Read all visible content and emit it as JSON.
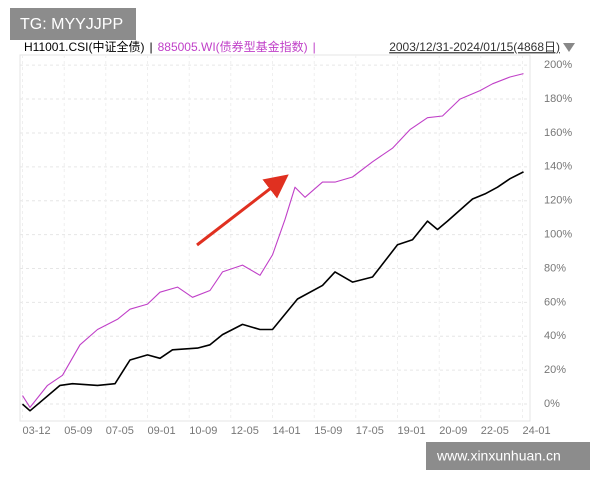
{
  "watermark_top": "TG: MYYJJPP",
  "watermark_bottom": "www.xinxunhuan.cn",
  "chart_data": {
    "type": "line",
    "legend_separator": "|",
    "date_range": "2003/12/31-2024/01/15(4868日)",
    "xlim": [
      2003.9,
      2024.3
    ],
    "ylim": [
      -10,
      206
    ],
    "grid": true,
    "xticks": [
      {
        "value": 2004.0,
        "label": "03-12"
      },
      {
        "value": 2005.67,
        "label": "05-09"
      },
      {
        "value": 2007.33,
        "label": "07-05"
      },
      {
        "value": 2009.0,
        "label": "09-01"
      },
      {
        "value": 2010.67,
        "label": "10-09"
      },
      {
        "value": 2012.33,
        "label": "12-05"
      },
      {
        "value": 2014.0,
        "label": "14-01"
      },
      {
        "value": 2015.67,
        "label": "15-09"
      },
      {
        "value": 2017.33,
        "label": "17-05"
      },
      {
        "value": 2019.0,
        "label": "19-01"
      },
      {
        "value": 2020.67,
        "label": "20-09"
      },
      {
        "value": 2022.33,
        "label": "22-05"
      },
      {
        "value": 2024.0,
        "label": "24-01"
      }
    ],
    "yticks": [
      {
        "value": 0,
        "label": "0%"
      },
      {
        "value": 20,
        "label": "20%"
      },
      {
        "value": 40,
        "label": "40%"
      },
      {
        "value": 60,
        "label": "60%"
      },
      {
        "value": 80,
        "label": "80%"
      },
      {
        "value": 100,
        "label": "100%"
      },
      {
        "value": 120,
        "label": "120%"
      },
      {
        "value": 140,
        "label": "140%"
      },
      {
        "value": 160,
        "label": "160%"
      },
      {
        "value": 180,
        "label": "180%"
      },
      {
        "value": 200,
        "label": "200%"
      }
    ],
    "series": [
      {
        "name": "H11001.CSI(中证全债)",
        "color": "#000000",
        "x": [
          2004.0,
          2004.3,
          2005.5,
          2006.0,
          2007.0,
          2007.7,
          2008.3,
          2009.0,
          2009.5,
          2010.0,
          2011.0,
          2011.5,
          2012.0,
          2012.8,
          2013.5,
          2014.0,
          2015.0,
          2016.0,
          2016.5,
          2017.2,
          2018.0,
          2019.0,
          2019.6,
          2020.2,
          2020.6,
          2021.0,
          2022.0,
          2022.5,
          2023.0,
          2023.5,
          2024.04
        ],
        "values": [
          0,
          -4,
          11,
          12,
          11,
          12,
          26,
          29,
          27,
          32,
          33,
          35,
          41,
          47,
          44,
          44,
          62,
          70,
          78,
          72,
          75,
          94,
          97,
          108,
          103,
          108,
          121,
          124,
          128,
          133,
          137
        ]
      },
      {
        "name": "885005.WI(债券型基金指数)",
        "color": "#c040c8",
        "x": [
          2004.0,
          2004.3,
          2005.0,
          2005.6,
          2006.3,
          2007.0,
          2007.8,
          2008.3,
          2009.0,
          2009.5,
          2010.2,
          2010.8,
          2011.5,
          2012.0,
          2012.8,
          2013.5,
          2014.0,
          2014.5,
          2014.9,
          2015.3,
          2016.0,
          2016.5,
          2017.2,
          2018.0,
          2018.8,
          2019.5,
          2020.2,
          2020.8,
          2021.5,
          2022.3,
          2022.8,
          2023.5,
          2024.04
        ],
        "values": [
          5,
          -2,
          11,
          17,
          35,
          44,
          50,
          56,
          59,
          66,
          69,
          63,
          67,
          78,
          82,
          76,
          88,
          109,
          128,
          122,
          131,
          131,
          134,
          143,
          151,
          162,
          169,
          170,
          180,
          185,
          189,
          193,
          195
        ]
      }
    ]
  }
}
